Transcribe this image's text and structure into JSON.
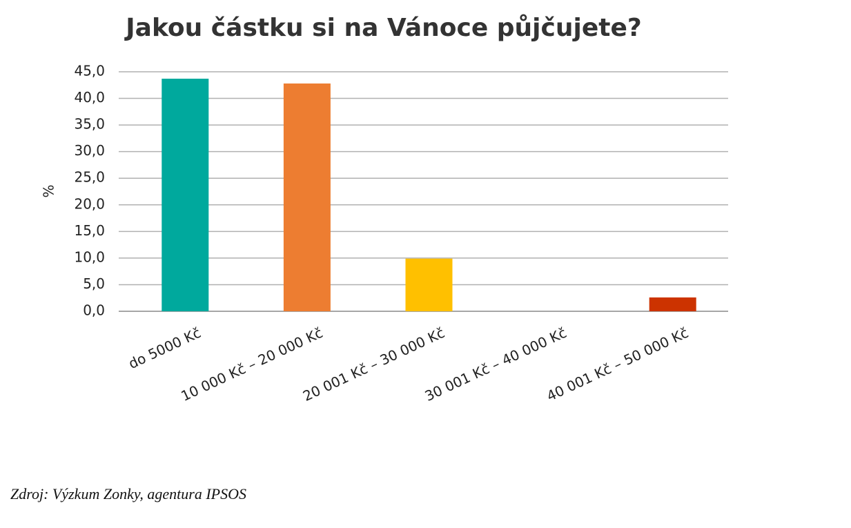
{
  "chart_data": {
    "type": "bar",
    "title": "Jakou částku si na Vánoce půjčujete?",
    "y_label": "%",
    "categories": [
      "do 5000 Kč",
      "10 000 Kč – 20 000 Kč",
      "20 001 Kč – 30 000 Kč",
      "30 001 Kč – 40 000 Kč",
      "40 001 Kč – 50 000 Kč"
    ],
    "values": [
      43.7,
      42.8,
      9.9,
      0,
      2.6
    ],
    "colors": [
      "#00a99d",
      "#ed7d31",
      "#ffc000",
      "#7f7f7f",
      "#cc3300"
    ],
    "ylim": [
      0,
      45
    ],
    "yticks": [
      {
        "value": 0,
        "label": "0,0"
      },
      {
        "value": 5,
        "label": "5,0"
      },
      {
        "value": 10,
        "label": "10,0"
      },
      {
        "value": 15,
        "label": "15,0"
      },
      {
        "value": 20,
        "label": "20,0"
      },
      {
        "value": 25,
        "label": "25,0"
      },
      {
        "value": 30,
        "label": "30,0"
      },
      {
        "value": 35,
        "label": "35,0"
      },
      {
        "value": 40,
        "label": "40,0"
      },
      {
        "value": 45,
        "label": "45,0"
      }
    ],
    "grid": true,
    "source": "Zdroj: Výzkum Zonky, agentura IPSOS"
  }
}
